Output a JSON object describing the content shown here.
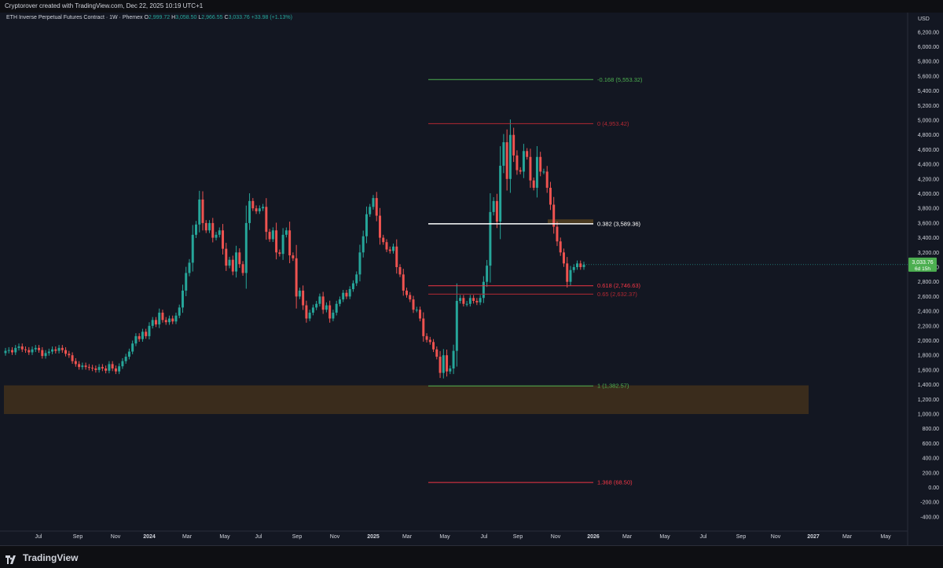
{
  "header": {
    "credit": "Cryptorover created with TradingView.com, Dec 22, 2025 10:19 UTC+1"
  },
  "legend": {
    "symbol": "ETH Inverse Perpetual Futures Contract · 1W · Phemex",
    "o_label": "O",
    "o": "2,999.72",
    "h_label": "H",
    "h": "3,058.50",
    "l_label": "L",
    "l": "2,966.55",
    "c_label": "C",
    "c": "3,033.76",
    "change": "+33.98 (+1.13%)"
  },
  "price_badge": {
    "price": "3,033.76",
    "countdown": "6d 15h"
  },
  "footer": {
    "brand": "TradingView"
  },
  "colors": {
    "up": "#26a69a",
    "down": "#ef5350",
    "background": "#131722",
    "zone": "#3a2c1c"
  },
  "chart_data": {
    "type": "candlestick",
    "currency": "USD",
    "y_ticks": [
      "-400.00",
      "-200.00",
      "0.00",
      "200.00",
      "400.00",
      "600.00",
      "800.00",
      "1,000.00",
      "1,200.00",
      "1,400.00",
      "1,600.00",
      "1,800.00",
      "2,000.00",
      "2,200.00",
      "2,400.00",
      "2,600.00",
      "2,800.00",
      "3,000.00",
      "3,200.00",
      "3,400.00",
      "3,600.00",
      "3,800.00",
      "4,000.00",
      "4,200.00",
      "4,400.00",
      "4,600.00",
      "4,800.00",
      "5,000.00",
      "5,200.00",
      "5,400.00",
      "5,600.00",
      "5,800.00",
      "6,000.00",
      "6,200.00"
    ],
    "y_range": [
      -500,
      6300
    ],
    "x_labels": [
      "Jul",
      "Sep",
      "Nov",
      "2024",
      "Mar",
      "May",
      "Jul",
      "Sep",
      "Nov",
      "2025",
      "Mar",
      "May",
      "Jul",
      "Sep",
      "Nov",
      "2026",
      "Mar",
      "May",
      "Jul",
      "Sep",
      "Nov",
      "2027",
      "Mar",
      "May"
    ],
    "fib_levels": [
      {
        "label": "-0.168 (5,553.32)",
        "value": 5553.32,
        "color": "#4caf50"
      },
      {
        "label": "0 (4,953.42)",
        "value": 4953.42,
        "color": "#b22833"
      },
      {
        "label": "0.382 (3,589.36)",
        "value": 3589.36,
        "color": "#ffffff"
      },
      {
        "label": "0.618 (2,746.63)",
        "value": 2746.63,
        "color": "#f23645"
      },
      {
        "label": "0.65 (2,632.37)",
        "value": 2632.37,
        "color": "#b22833"
      },
      {
        "label": "1 (1,382.57)",
        "value": 1382.57,
        "color": "#4caf50"
      },
      {
        "label": "1.368 (68.50)",
        "value": 68.5,
        "color": "#f23645"
      }
    ],
    "support_zone": [
      1000,
      1390
    ],
    "resistance_zone": [
      3590,
      3650
    ],
    "last_price": 3033.76,
    "weekly_close": [
      1860,
      1870,
      1840,
      1900,
      1920,
      1880,
      1870,
      1840,
      1880,
      1900,
      1870,
      1790,
      1830,
      1850,
      1880,
      1860,
      1900,
      1870,
      1820,
      1800,
      1720,
      1680,
      1640,
      1660,
      1640,
      1630,
      1620,
      1600,
      1640,
      1620,
      1590,
      1680,
      1620,
      1580,
      1650,
      1720,
      1780,
      1850,
      1960,
      2060,
      2020,
      2120,
      2060,
      2200,
      2280,
      2220,
      2380,
      2280,
      2250,
      2300,
      2260,
      2340,
      2450,
      2680,
      2920,
      3060,
      3440,
      3580,
      3920,
      3600,
      3500,
      3600,
      3400,
      3440,
      3500,
      3250,
      3020,
      3100,
      2940,
      3200,
      3040,
      2920,
      3600,
      3900,
      3800,
      3760,
      3800,
      3820,
      3480,
      3380,
      3500,
      3200,
      3180,
      3440,
      3500,
      3160,
      3120,
      2600,
      2680,
      2480,
      2300,
      2380,
      2450,
      2500,
      2600,
      2420,
      2480,
      2300,
      2380,
      2500,
      2560,
      2650,
      2600,
      2700,
      2780,
      2900,
      3200,
      3420,
      3720,
      3820,
      3940,
      3700,
      3400,
      3340,
      3240,
      3220,
      3280,
      3000,
      2900,
      2680,
      2620,
      2560,
      2420,
      2420,
      2300,
      2060,
      2010,
      1980,
      1880,
      1780,
      1560,
      1800,
      1580,
      1620,
      1860,
      2540,
      2580,
      2500,
      2500,
      2580,
      2540,
      2520,
      2580,
      2800,
      3020,
      3750,
      3900,
      3620,
      4380,
      4700,
      4200,
      4800,
      4520,
      4320,
      4300,
      4580,
      4500,
      4180,
      4080,
      4500,
      4300,
      4300,
      4080,
      3850,
      3550,
      3350,
      3200,
      3050,
      2800,
      2960,
      3000,
      3050,
      3000,
      3033.76
    ]
  }
}
